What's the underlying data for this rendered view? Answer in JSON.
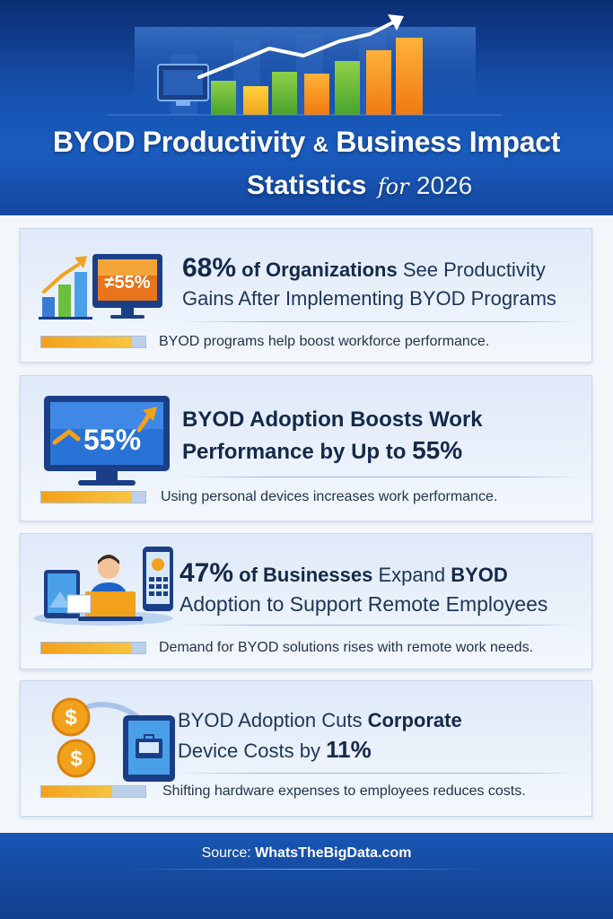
{
  "header": {
    "title_part1": "BYOD Productivity",
    "title_amp": "&",
    "title_part2": "Business Impact",
    "title_line2_main": "Statistics",
    "title_line2_for": "for",
    "title_line2_year": "2026"
  },
  "cards": [
    {
      "headline_line1_stat": "68%",
      "headline_line1_bold": "of Organizations",
      "headline_line1_rest": "See Productivity",
      "headline_line2": "Gains After Implementing BYOD Programs",
      "icon_badge": "≠55%",
      "subtext": "BYOD programs help boost workforce performance.",
      "bar_fill": 0.87
    },
    {
      "headline_line1": "BYOD Adoption Boosts Work",
      "headline_line2_main": "Performance by Up to",
      "headline_line2_stat": "55%",
      "icon_badge": "55%",
      "subtext": "Using personal devices increases work performance.",
      "bar_fill": 0.87
    },
    {
      "headline_line1_stat": "47%",
      "headline_line1_bold": "of Businesses",
      "headline_line1_rest": "Expand",
      "headline_line1_bold2": "BYOD",
      "headline_line2": "Adoption to Support Remote Employees",
      "subtext": "Demand for BYOD solutions rises with remote work needs.",
      "bar_fill": 0.87
    },
    {
      "headline_line1_main": "BYOD Adoption Cuts",
      "headline_line1_bold": "Corporate",
      "headline_line2_main": "Device Costs by",
      "headline_line2_stat": "11%",
      "subtext": "Shifting hardware expenses to employees reduces costs.",
      "bar_fill": 0.68
    }
  ],
  "footer": {
    "source_label": "Source:",
    "source_value": "WhatsTheBigData.com"
  },
  "colors": {
    "header_blue": "#1652b0",
    "accent_orange": "#f2a11c",
    "text_navy": "#14294a"
  }
}
